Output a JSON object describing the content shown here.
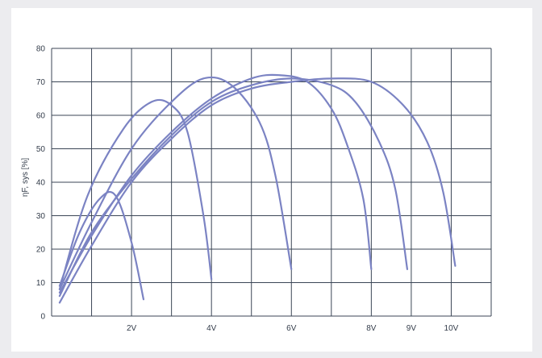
{
  "chart_data": {
    "type": "line",
    "title": "",
    "ylabel": "ηF, sys [%]",
    "xlabel": "",
    "ylim": [
      0,
      80
    ],
    "yticks": [
      0,
      10,
      20,
      30,
      40,
      50,
      60,
      70,
      80
    ],
    "xlim": [
      0,
      11
    ],
    "x_tick_labels": [
      {
        "x": 2,
        "label": "2V"
      },
      {
        "x": 4,
        "label": "4V"
      },
      {
        "x": 6,
        "label": "6V"
      },
      {
        "x": 8,
        "label": "8V"
      },
      {
        "x": 9,
        "label": "9V"
      },
      {
        "x": 10,
        "label": "10V"
      }
    ],
    "grid": true,
    "colors": {
      "curve": "#7b83c3",
      "grid": "#3b4656",
      "background": "#ececef"
    },
    "series": [
      {
        "x": [
          0.2,
          0.7,
          1.2,
          1.6,
          2.0,
          2.3
        ],
        "y": [
          9,
          25,
          35,
          36,
          22,
          5
        ]
      },
      {
        "x": [
          0.2,
          0.9,
          1.8,
          2.5,
          3.0,
          3.4,
          3.8,
          4.0
        ],
        "y": [
          8,
          36,
          56,
          64,
          63,
          55,
          30,
          11
        ]
      },
      {
        "x": [
          0.2,
          1.0,
          2.0,
          3.0,
          3.8,
          4.5,
          5.2,
          5.6,
          6.0
        ],
        "y": [
          8,
          28,
          50,
          64,
          71,
          69,
          58,
          42,
          14
        ]
      },
      {
        "x": [
          0.2,
          1.0,
          2.0,
          3.0,
          4.0,
          5.0,
          5.7,
          6.4,
          7.0,
          7.4,
          7.8,
          8.0
        ],
        "y": [
          7,
          24,
          42,
          55,
          65,
          71,
          72,
          70,
          62,
          51,
          35,
          14
        ]
      },
      {
        "x": [
          0.2,
          1.0,
          2.0,
          3.0,
          4.0,
          5.0,
          6.0,
          7.0,
          7.6,
          8.2,
          8.6,
          8.9
        ],
        "y": [
          6,
          25,
          41,
          54,
          64,
          69,
          71,
          69,
          64,
          52,
          38,
          14
        ]
      },
      {
        "x": [
          0.2,
          1.0,
          2.0,
          3.0,
          4.0,
          5.0,
          6.0,
          7.0,
          8.0,
          8.8,
          9.4,
          9.8,
          10.1
        ],
        "y": [
          4,
          21,
          40,
          53,
          63,
          68,
          70,
          71,
          70,
          63,
          52,
          37,
          15
        ]
      }
    ]
  }
}
